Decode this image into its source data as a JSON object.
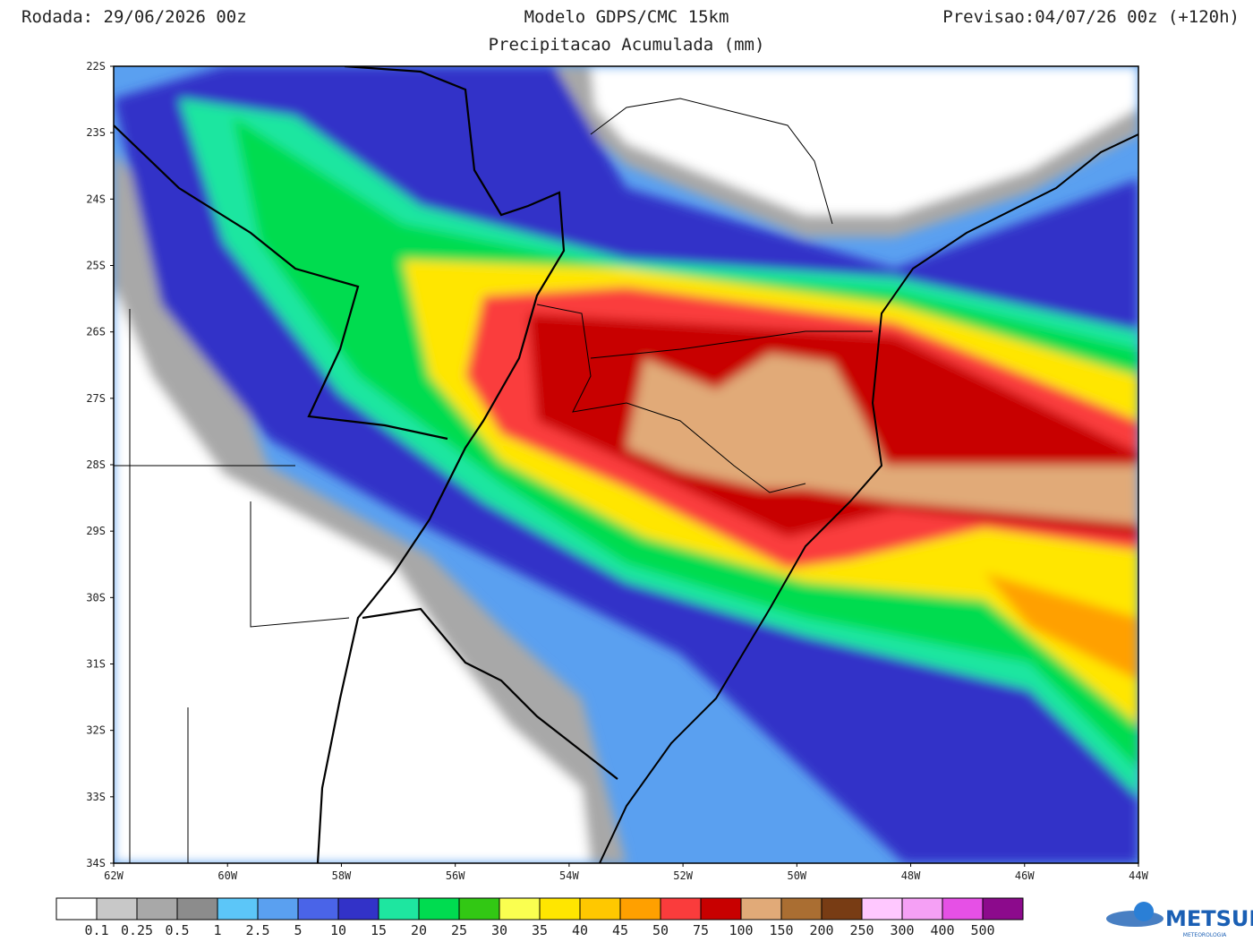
{
  "header": {
    "run": "Rodada: 29/06/2026 00z",
    "model": "Modelo GDPS/CMC 15km",
    "forecast": "Previsao:04/07/26 00z (+120h)",
    "subtitle": "Precipitacao Acumulada (mm)"
  },
  "map": {
    "lat_labels": [
      "22S",
      "23S",
      "24S",
      "25S",
      "26S",
      "27S",
      "28S",
      "29S",
      "30S",
      "31S",
      "32S",
      "33S",
      "34S"
    ],
    "lon_labels": [
      "62W",
      "60W",
      "58W",
      "56W",
      "54W",
      "52W",
      "50W",
      "48W",
      "46W",
      "44W"
    ]
  },
  "colorbar": {
    "colors": [
      "#ffffff",
      "#c8c8c8",
      "#a8a8a8",
      "#8c8c8c",
      "#5cc6f8",
      "#5aa0f0",
      "#4a64e8",
      "#3232c8",
      "#1ee6a0",
      "#00dc50",
      "#32c814",
      "#faff50",
      "#ffe600",
      "#ffc800",
      "#ffa000",
      "#fa3c3c",
      "#c80000",
      "#e1aa78",
      "#aa6e32",
      "#783c14",
      "#ffc8ff",
      "#f5a0f5",
      "#e650e6",
      "#8c0a8c"
    ],
    "labels": [
      "0.1",
      "0.25",
      "0.5",
      "1",
      "2.5",
      "5",
      "10",
      "15",
      "20",
      "25",
      "30",
      "35",
      "40",
      "45",
      "50",
      "75",
      "100",
      "150",
      "200",
      "250",
      "300",
      "400",
      "500"
    ]
  },
  "logo": {
    "text": "METSUL",
    "subtext": "METEOROLOGIA"
  }
}
